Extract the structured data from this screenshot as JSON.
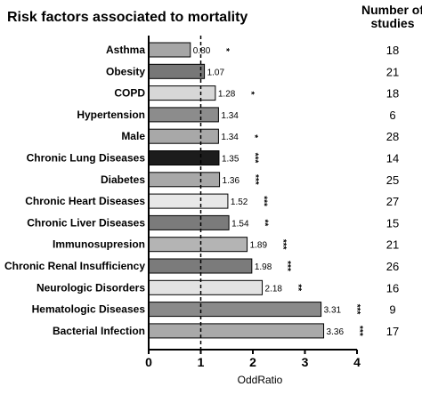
{
  "chart_data": {
    "type": "bar",
    "orientation": "horizontal",
    "title": "Risk factors associated to mortality",
    "xlabel": "OddRatio",
    "xlim": [
      0,
      4
    ],
    "xticks": [
      "0",
      "1",
      "2",
      "3",
      "4"
    ],
    "reference_line": 1,
    "studies_header": [
      "Number of",
      "studies"
    ],
    "categories": [
      "Asthma",
      "Obesity",
      "COPD",
      "Hypertension",
      "Male",
      "Chronic Lung Diseases",
      "Diabetes",
      "Chronic Heart Diseases",
      "Chronic Liver Diseases",
      "Immunosupresion",
      "Chronic Renal Insufficiency",
      "Neurologic Disorders",
      "Hematologic Diseases",
      "Bacterial Infection"
    ],
    "values": [
      0.8,
      1.07,
      1.28,
      1.34,
      1.34,
      1.35,
      1.36,
      1.52,
      1.54,
      1.89,
      1.98,
      2.18,
      3.31,
      3.36
    ],
    "value_labels": [
      "0.80",
      "1.07",
      "1.28",
      "1.34",
      "1.34",
      "1.35",
      "1.36",
      "1.52",
      "1.54",
      "1.89",
      "1.98",
      "2.18",
      "3.31",
      "3.36"
    ],
    "significance": [
      "*",
      "",
      "*",
      "",
      "*",
      "***",
      "***",
      "***",
      "**",
      "***",
      "***",
      "**",
      "***",
      "***"
    ],
    "studies": [
      "18",
      "21",
      "18",
      "6",
      "28",
      "14",
      "25",
      "27",
      "15",
      "21",
      "26",
      "16",
      "9",
      "17"
    ],
    "colors": [
      "#a6a6a6",
      "#777777",
      "#d7d7d7",
      "#8c8c8c",
      "#a8a8a8",
      "#1c1c1c",
      "#a8a8a8",
      "#e8e8e8",
      "#7b7b7b",
      "#b4b4b4",
      "#7b7b7b",
      "#e3e3e3",
      "#8a8a8a",
      "#a9a9a9"
    ]
  }
}
